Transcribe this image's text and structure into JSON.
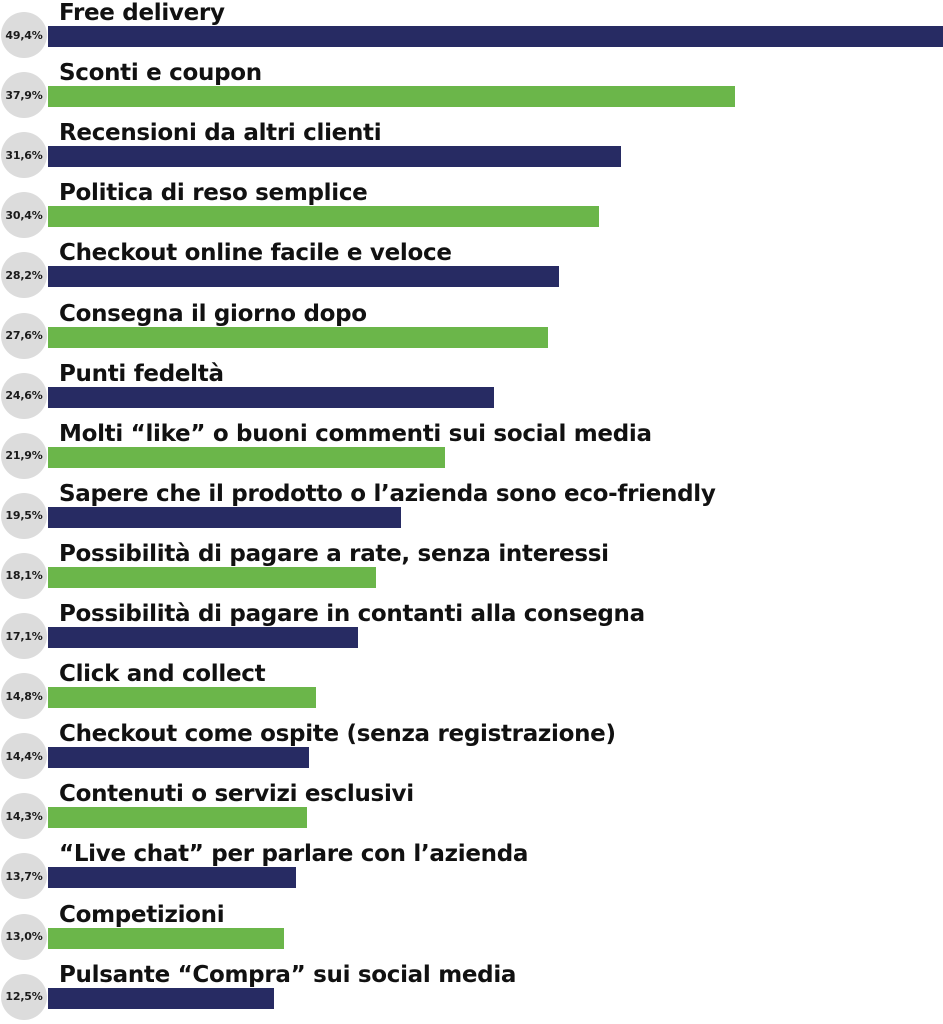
{
  "colors": {
    "navy": "#272b63",
    "green": "#6bb64a",
    "badge": "#dcdcdc"
  },
  "chart_data": {
    "type": "bar",
    "orientation": "horizontal",
    "unit": "%",
    "xlim": [
      0,
      49.4
    ],
    "grid": false,
    "legend": "none",
    "categories": [
      "Free delivery",
      "Sconti e coupon",
      "Recensioni da altri clienti",
      "Politica di reso semplice",
      "Checkout online facile e veloce",
      "Consegna il giorno dopo",
      "Punti fedeltà",
      "Molti “like” o buoni commenti sui social media",
      "Sapere che il prodotto o l’azienda sono eco-friendly",
      "Possibilità di pagare a rate, senza interessi",
      "Possibilità di pagare in contanti alla consegna",
      "Click and collect",
      "Checkout come ospite (senza registrazione)",
      "Contenuti o servizi esclusivi",
      "“Live chat” per parlare con l’azienda",
      "Competizioni",
      "Pulsante “Compra” sui social media"
    ],
    "values": [
      49.4,
      37.9,
      31.6,
      30.4,
      28.2,
      27.6,
      24.6,
      21.9,
      19.5,
      18.1,
      17.1,
      14.8,
      14.4,
      14.3,
      13.7,
      13.0,
      12.5
    ],
    "value_labels": [
      "49,4%",
      "37,9%",
      "31,6%",
      "30,4%",
      "28,2%",
      "27,6%",
      "24,6%",
      "21,9%",
      "19,5%",
      "18,1%",
      "17,1%",
      "14,8%",
      "14,4%",
      "14,3%",
      "13,7%",
      "13,0%",
      "12,5%"
    ],
    "bar_colors": [
      "navy",
      "green",
      "navy",
      "green",
      "navy",
      "green",
      "navy",
      "green",
      "navy",
      "green",
      "navy",
      "green",
      "navy",
      "green",
      "navy",
      "green",
      "navy"
    ]
  }
}
